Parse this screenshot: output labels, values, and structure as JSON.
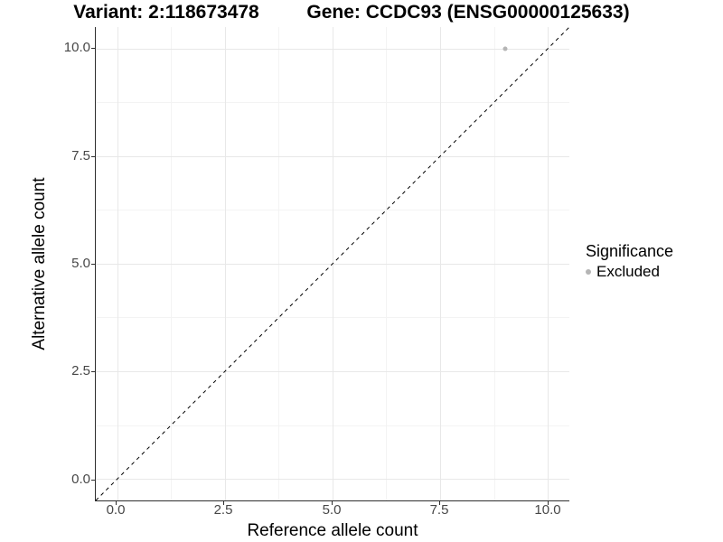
{
  "page": {
    "background": "#ffffff"
  },
  "chart_data": {
    "type": "scatter",
    "title_left": "Variant: 2:118673478",
    "title_right": "Gene: CCDC93 (ENSG00000125633)",
    "xlabel": "Reference allele count",
    "ylabel": "Alternative allele count",
    "xlim": [
      -0.5,
      10.5
    ],
    "ylim": [
      -0.5,
      10.5
    ],
    "x_ticks": [
      0.0,
      2.5,
      5.0,
      7.5,
      10.0
    ],
    "y_ticks": [
      0.0,
      2.5,
      5.0,
      7.5,
      10.0
    ],
    "x_tick_labels": [
      "0.0",
      "2.5",
      "5.0",
      "7.5",
      "10.0"
    ],
    "y_tick_labels": [
      "0.0",
      "2.5",
      "5.0",
      "7.5",
      "10.0"
    ],
    "grid": "major and minor, light grey on white",
    "series": [
      {
        "name": "Excluded",
        "marker": "circle",
        "color": "#b5b5b5",
        "points": [
          [
            9,
            10
          ]
        ]
      }
    ],
    "reference_line": {
      "type": "identity",
      "slope": 1,
      "intercept": 0,
      "style": "dashed",
      "color": "#000000"
    },
    "legend": {
      "title": "Significance",
      "position": "right",
      "items": [
        {
          "label": "Excluded",
          "marker": "circle",
          "color": "#b5b5b5"
        }
      ]
    }
  },
  "colors": {
    "axis_line": "#2e2e2e",
    "tick_label": "#474747",
    "grid_major": "#e8e8e8",
    "grid_minor": "#f3f3f3",
    "point": "#b5b5b5",
    "title_text": "#000000"
  }
}
